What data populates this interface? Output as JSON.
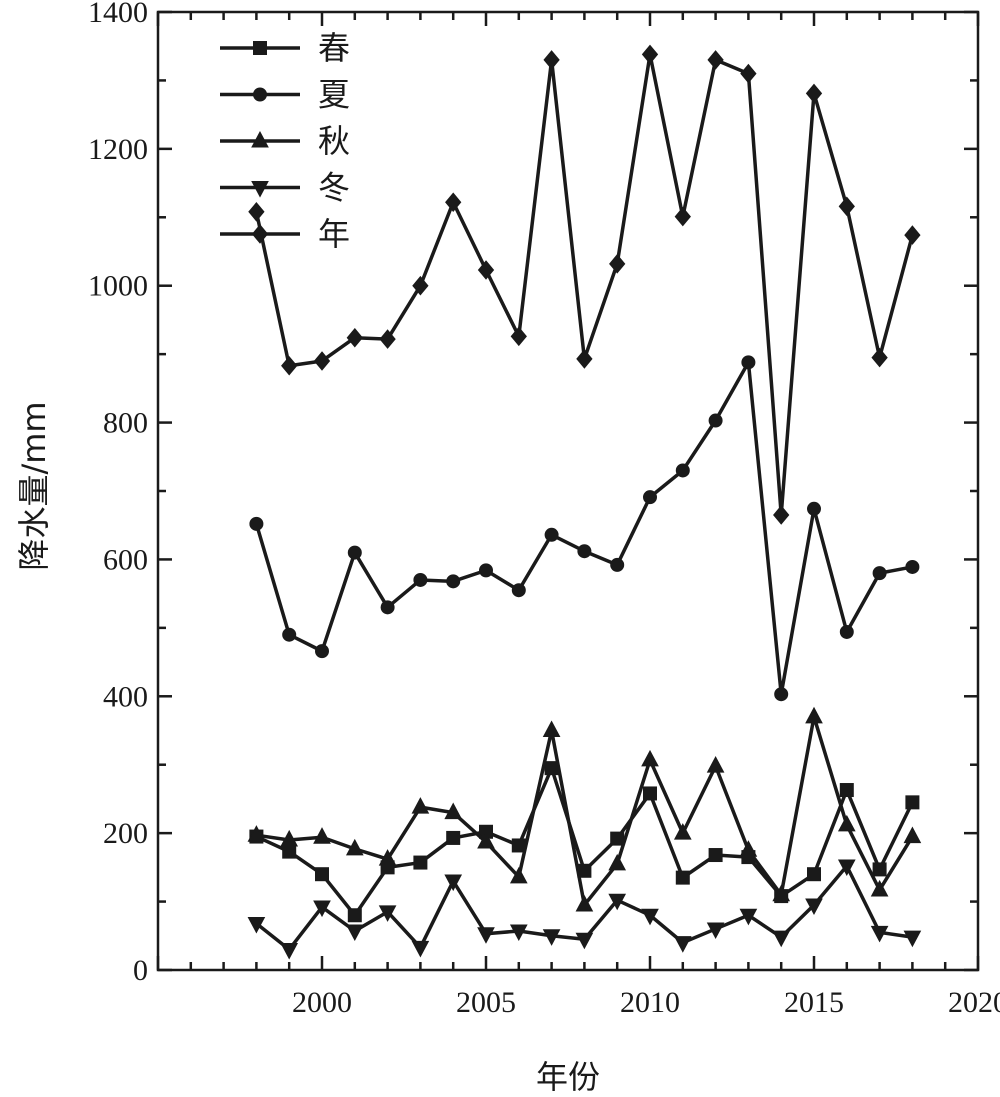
{
  "chart_data": {
    "type": "line",
    "xlabel": "年份",
    "ylabel": "降水量/mm",
    "xlim": [
      1995,
      2020
    ],
    "ylim": [
      0,
      1400
    ],
    "x_ticks": [
      2000,
      2005,
      2010,
      2015,
      2020
    ],
    "y_ticks": [
      0,
      200,
      400,
      600,
      800,
      1000,
      1200,
      1400
    ],
    "legend_position": "top-left",
    "grid": false,
    "x": [
      1998,
      1999,
      2000,
      2001,
      2002,
      2003,
      2004,
      2005,
      2006,
      2007,
      2008,
      2009,
      2010,
      2011,
      2012,
      2013,
      2014,
      2015,
      2016,
      2017,
      2018
    ],
    "series": [
      {
        "name": "春",
        "marker": "square",
        "values": [
          195,
          173,
          140,
          80,
          150,
          157,
          193,
          202,
          182,
          295,
          145,
          192,
          258,
          135,
          168,
          165,
          108,
          140,
          263,
          147,
          245
        ]
      },
      {
        "name": "夏",
        "marker": "circle",
        "values": [
          652,
          490,
          466,
          610,
          530,
          570,
          568,
          584,
          555,
          636,
          612,
          592,
          691,
          730,
          803,
          888,
          403,
          674,
          494,
          580,
          589
        ]
      },
      {
        "name": "秋",
        "marker": "triangle-up",
        "values": [
          197,
          190,
          194,
          177,
          162,
          238,
          230,
          187,
          136,
          350,
          95,
          155,
          307,
          200,
          298,
          175,
          110,
          370,
          212,
          117,
          195
        ]
      },
      {
        "name": "冬",
        "marker": "triangle-down",
        "values": [
          68,
          30,
          92,
          57,
          85,
          33,
          130,
          53,
          57,
          50,
          45,
          102,
          80,
          40,
          60,
          80,
          48,
          95,
          152,
          55,
          48
        ]
      },
      {
        "name": "年",
        "marker": "diamond",
        "values": [
          1108,
          883,
          890,
          924,
          922,
          1000,
          1122,
          1023,
          926,
          1330,
          893,
          1032,
          1338,
          1101,
          1330,
          1310,
          665,
          1281,
          1116,
          895,
          1074
        ]
      }
    ]
  }
}
